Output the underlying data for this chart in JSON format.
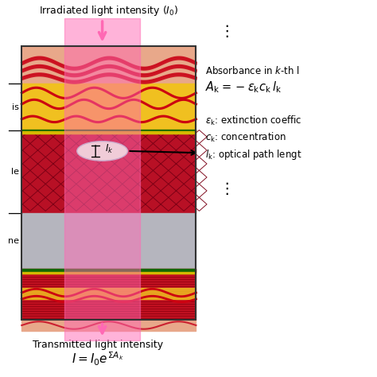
{
  "title_top": "Irradiated light intensity ($I_0$)",
  "title_bottom": "Transmitted light intensity",
  "formula_bottom": "$I = I_0 e^{\\Sigma A_k}$",
  "label_epidermis": "is",
  "label_muscle": "le",
  "label_bone": "ne",
  "absorbance_title": "Absorbance in $k$-th l",
  "absorbance_formula": "$A_\\mathrm{k}=-\\varepsilon_\\mathrm{k}c_\\mathrm{k}\\,l_\\mathrm{k}$",
  "epsilon_label": "$\\varepsilon_\\mathrm{k}$: extinction coeffic",
  "c_label": "$c_\\mathrm{k}$: concentration",
  "l_label": "$l_\\mathrm{k}$: optical path lengt",
  "Ik_label": "$I_k$",
  "fig_width": 4.74,
  "fig_height": 4.74,
  "dpi": 100,
  "background": "#ffffff",
  "beam_color": "#ff69b4",
  "beam_alpha": 0.5
}
